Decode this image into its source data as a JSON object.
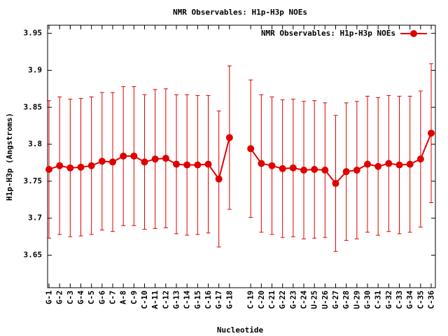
{
  "chart_data": {
    "type": "line",
    "title": "NMR Observables: H1p-H3p NOEs",
    "x_label": "Nucleotide",
    "y_label": "H1p-H3p (Angstroms)",
    "categories": [
      "G-1",
      "G-2",
      "C-3",
      "G-4",
      "C-5",
      "G-6",
      "C-7",
      "A-8",
      "C-9",
      "C-10",
      "A-11",
      "C-12",
      "G-13",
      "C-14",
      "G-15",
      "C-16",
      "G-17",
      "G-18",
      null,
      "C-19",
      "C-20",
      "C-21",
      "G-22",
      "G-23",
      "C-24",
      "U-25",
      "U-26",
      "G-27",
      "G-28",
      "U-29",
      "G-30",
      "C-31",
      "G-32",
      "C-33",
      "G-34",
      "C-35",
      "C-36"
    ],
    "series": [
      {
        "name": "NMR Observables: H1p-H3p NOEs",
        "color": "#e00000",
        "values": [
          3.766,
          3.771,
          3.768,
          3.769,
          3.771,
          3.777,
          3.776,
          3.784,
          3.784,
          3.776,
          3.78,
          3.781,
          3.773,
          3.772,
          3.772,
          3.773,
          3.753,
          3.809,
          null,
          3.794,
          3.774,
          3.771,
          3.767,
          3.768,
          3.765,
          3.766,
          3.765,
          3.747,
          3.763,
          3.765,
          3.773,
          3.77,
          3.774,
          3.772,
          3.773,
          3.78,
          3.815
        ],
        "errors": [
          0.093,
          0.093,
          0.093,
          0.093,
          0.093,
          0.093,
          0.094,
          0.094,
          0.094,
          0.091,
          0.094,
          0.094,
          0.094,
          0.095,
          0.094,
          0.093,
          0.092,
          0.097,
          null,
          0.093,
          0.093,
          0.093,
          0.093,
          0.093,
          0.093,
          0.093,
          0.091,
          0.092,
          0.093,
          0.093,
          0.092,
          0.093,
          0.092,
          0.093,
          0.092,
          0.092,
          0.094
        ]
      }
    ],
    "ylim": [
      3.606,
      3.961
    ],
    "yticks": [
      3.65,
      3.7,
      3.75,
      3.8,
      3.85,
      3.9,
      3.95
    ],
    "legend": "upper-right",
    "grid": false
  }
}
